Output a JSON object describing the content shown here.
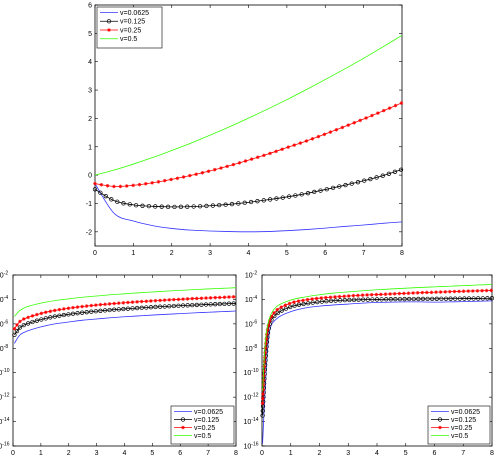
{
  "colors": {
    "blue": "#3333ff",
    "black": "#000000",
    "red": "#ff0000",
    "green": "#33ff00"
  },
  "chart_data": [
    {
      "type": "line",
      "title": "",
      "xlabel": "",
      "ylabel": "",
      "xlim": [
        0,
        8
      ],
      "ylim": [
        -2.5,
        6
      ],
      "yscale": "linear",
      "grid": false,
      "legend": "top-left",
      "xticks": [
        "0",
        "1",
        "2",
        "3",
        "4",
        "5",
        "6",
        "7",
        "8"
      ],
      "yticks": [
        "-2",
        "-1",
        "0",
        "1",
        "2",
        "3",
        "4",
        "5",
        "6"
      ],
      "x": [
        0,
        0.5,
        1,
        1.5,
        2,
        2.5,
        3,
        3.5,
        4,
        4.5,
        5,
        5.5,
        6,
        6.5,
        7,
        7.5,
        8
      ],
      "series": [
        {
          "name": "v=0.0625",
          "color": "blue",
          "marker": "none",
          "values": [
            -0.3,
            -1.35,
            -1.62,
            -1.78,
            -1.88,
            -1.94,
            -1.97,
            -1.99,
            -2.0,
            -1.99,
            -1.96,
            -1.92,
            -1.87,
            -1.81,
            -1.76,
            -1.7,
            -1.65
          ]
        },
        {
          "name": "v=0.125",
          "color": "black",
          "marker": "circle",
          "values": [
            -0.5,
            -0.9,
            -1.05,
            -1.1,
            -1.12,
            -1.11,
            -1.08,
            -1.03,
            -0.96,
            -0.87,
            -0.77,
            -0.65,
            -0.51,
            -0.36,
            -0.2,
            -0.02,
            0.2
          ]
        },
        {
          "name": "v=0.25",
          "color": "red",
          "marker": "star",
          "values": [
            -0.3,
            -0.4,
            -0.36,
            -0.27,
            -0.15,
            -0.01,
            0.15,
            0.33,
            0.53,
            0.74,
            0.97,
            1.2,
            1.45,
            1.71,
            1.98,
            2.26,
            2.55
          ]
        },
        {
          "name": "v=0.5",
          "color": "green",
          "marker": "none",
          "values": [
            0.0,
            0.18,
            0.39,
            0.62,
            0.87,
            1.13,
            1.41,
            1.7,
            2.01,
            2.33,
            2.66,
            3.01,
            3.37,
            3.74,
            4.12,
            4.52,
            4.93
          ]
        }
      ]
    },
    {
      "type": "line",
      "title": "",
      "xlabel": "",
      "ylabel": "",
      "xlim": [
        0,
        8
      ],
      "ylim": [
        -16,
        -2
      ],
      "yscale": "log",
      "grid": false,
      "legend": "bottom-right",
      "xticks": [
        "0",
        "1",
        "2",
        "3",
        "4",
        "5",
        "6",
        "7",
        "8"
      ],
      "ytick_exponents": [
        "-16",
        "-14",
        "-12",
        "-10",
        "-8",
        "-6",
        "-4",
        "-2"
      ],
      "ytick_base": "10",
      "x": [
        0.05,
        0.25,
        0.5,
        1,
        1.5,
        2,
        2.5,
        3,
        3.5,
        4,
        4.5,
        5,
        5.5,
        6,
        6.5,
        7,
        7.5,
        8
      ],
      "series": [
        {
          "name": "v=0.0625",
          "color": "blue",
          "marker": "none",
          "values": [
            -7.6,
            -6.9,
            -6.6,
            -6.25,
            -6.0,
            -5.85,
            -5.7,
            -5.6,
            -5.5,
            -5.42,
            -5.35,
            -5.28,
            -5.22,
            -5.16,
            -5.1,
            -5.05,
            -5.0,
            -4.95
          ]
        },
        {
          "name": "v=0.125",
          "color": "black",
          "marker": "circle",
          "values": [
            -6.9,
            -6.3,
            -6.0,
            -5.65,
            -5.4,
            -5.22,
            -5.08,
            -4.96,
            -4.86,
            -4.78,
            -4.7,
            -4.63,
            -4.57,
            -4.51,
            -4.46,
            -4.41,
            -4.37,
            -4.33
          ]
        },
        {
          "name": "v=0.25",
          "color": "red",
          "marker": "star",
          "values": [
            -6.4,
            -5.8,
            -5.5,
            -5.15,
            -4.9,
            -4.72,
            -4.58,
            -4.46,
            -4.36,
            -4.27,
            -4.19,
            -4.12,
            -4.05,
            -3.99,
            -3.93,
            -3.88,
            -3.83,
            -3.78
          ]
        },
        {
          "name": "v=0.5",
          "color": "green",
          "marker": "none",
          "values": [
            -5.4,
            -4.9,
            -4.6,
            -4.3,
            -4.1,
            -3.95,
            -3.82,
            -3.72,
            -3.62,
            -3.54,
            -3.46,
            -3.39,
            -3.32,
            -3.26,
            -3.2,
            -3.14,
            -3.09,
            -3.04
          ]
        }
      ]
    },
    {
      "type": "line",
      "title": "",
      "xlabel": "",
      "ylabel": "",
      "xlim": [
        0,
        8
      ],
      "ylim": [
        -16,
        -2
      ],
      "yscale": "log",
      "grid": false,
      "legend": "bottom-right",
      "xticks": [
        "0",
        "1",
        "2",
        "3",
        "4",
        "5",
        "6",
        "7",
        "8"
      ],
      "ytick_exponents": [
        "-16",
        "-14",
        "-12",
        "-10",
        "-8",
        "-6",
        "-4",
        "-2"
      ],
      "ytick_base": "10",
      "x": [
        0.02,
        0.12,
        0.25,
        0.5,
        1,
        1.5,
        2,
        2.5,
        3,
        3.5,
        4,
        4.5,
        5,
        5.5,
        6,
        6.5,
        7,
        7.5,
        8
      ],
      "series": [
        {
          "name": "v=0.0625",
          "color": "blue",
          "marker": "none",
          "values": [
            -15.8,
            -11.0,
            -6.8,
            -5.6,
            -5.0,
            -4.7,
            -4.55,
            -4.45,
            -4.38,
            -4.3,
            -4.25,
            -4.22,
            -4.2,
            -4.2,
            -4.22,
            -4.2,
            -4.18,
            -4.15,
            -4.12
          ]
        },
        {
          "name": "v=0.125",
          "color": "black",
          "marker": "circle",
          "values": [
            -13.5,
            -9.0,
            -6.2,
            -5.2,
            -4.6,
            -4.35,
            -4.2,
            -4.1,
            -4.05,
            -4.02,
            -4.0,
            -3.98,
            -3.97,
            -3.96,
            -3.95,
            -3.94,
            -3.93,
            -3.92,
            -3.9
          ]
        },
        {
          "name": "v=0.25",
          "color": "red",
          "marker": "star",
          "values": [
            -12.5,
            -8.0,
            -5.9,
            -4.9,
            -4.3,
            -4.05,
            -3.9,
            -3.8,
            -3.72,
            -3.65,
            -3.6,
            -3.55,
            -3.5,
            -3.45,
            -3.41,
            -3.37,
            -3.33,
            -3.3,
            -3.26
          ]
        },
        {
          "name": "v=0.5",
          "color": "green",
          "marker": "none",
          "values": [
            -11.5,
            -7.4,
            -5.6,
            -4.6,
            -4.05,
            -3.8,
            -3.62,
            -3.48,
            -3.38,
            -3.29,
            -3.21,
            -3.14,
            -3.08,
            -3.02,
            -2.97,
            -2.92,
            -2.87,
            -2.82,
            -2.78
          ]
        }
      ]
    }
  ]
}
